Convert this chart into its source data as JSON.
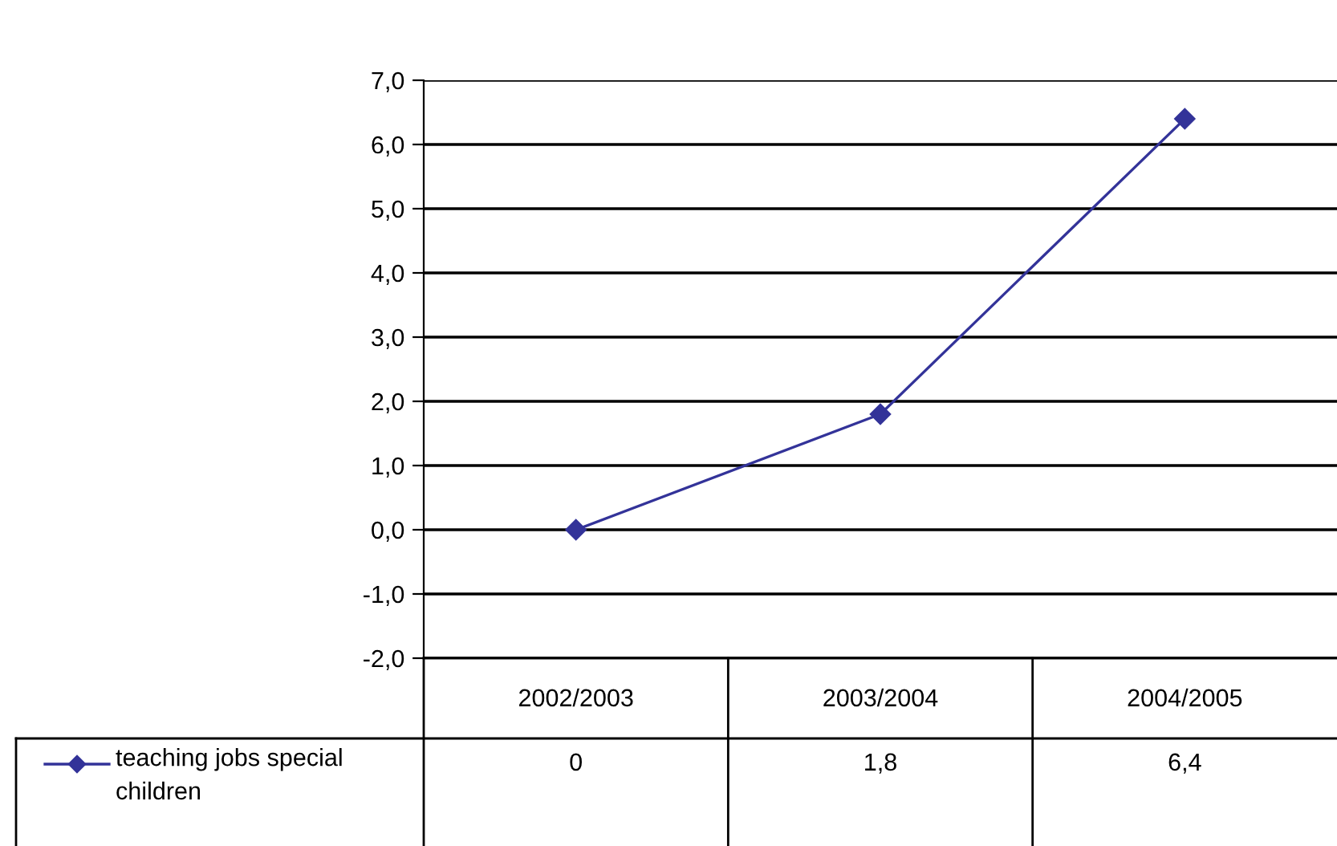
{
  "chart_data": {
    "type": "line",
    "categories": [
      "2002/2003",
      "2003/2004",
      "2004/2005"
    ],
    "series": [
      {
        "name": "teaching jobs special children",
        "color": "#333399",
        "values": [
          0,
          1.8,
          6.4
        ],
        "value_labels": [
          "0",
          "1,8",
          "6,4"
        ]
      }
    ],
    "ylim": [
      -2,
      7
    ],
    "yticks": [
      {
        "value": -2,
        "label": "-2,0"
      },
      {
        "value": -1,
        "label": "-1,0"
      },
      {
        "value": 0,
        "label": "0,0"
      },
      {
        "value": 1,
        "label": "1,0"
      },
      {
        "value": 2,
        "label": "2,0"
      },
      {
        "value": 3,
        "label": "3,0"
      },
      {
        "value": 4,
        "label": "4,0"
      },
      {
        "value": 5,
        "label": "5,0"
      },
      {
        "value": 6,
        "label": "6,0"
      },
      {
        "value": 7,
        "label": "7,0"
      }
    ],
    "grid": "y",
    "marker": "diamond",
    "line_style": "solid",
    "legend": "bottom left"
  }
}
